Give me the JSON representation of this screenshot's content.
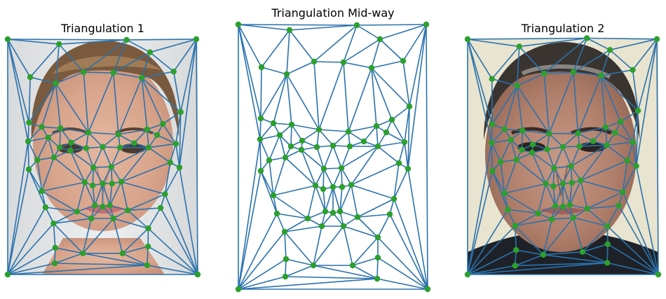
{
  "figure": {
    "panels": [
      {
        "title": "Triangulation 1",
        "image": "woman-face-photo"
      },
      {
        "title": "Triangulation Mid-way",
        "image": "none"
      },
      {
        "title": "Triangulation 2",
        "image": "man-face-photo"
      }
    ]
  },
  "colors": {
    "edge": "#2a72ad",
    "point": "#2ca02c"
  }
}
